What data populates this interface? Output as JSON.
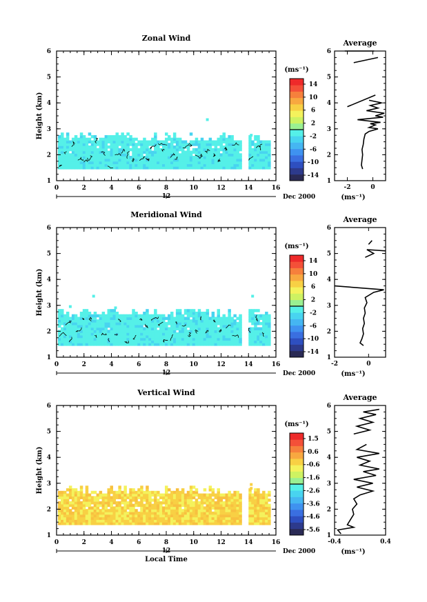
{
  "chart_data": [
    {
      "type": "heatmap",
      "title": "Zonal Wind",
      "ylabel": "Height (km)",
      "xlim": [
        0,
        16
      ],
      "ylim": [
        1,
        6
      ],
      "x_ticks": [
        "0",
        "2",
        "4",
        "6",
        "8",
        "10",
        "12",
        "14",
        "16"
      ],
      "y_ticks": [
        "1",
        "2",
        "3",
        "4",
        "5",
        "6"
      ],
      "date_day": "12",
      "date_label": "Dec 2000",
      "colorbar": {
        "unit": "(ms⁻¹)",
        "ticks": [
          "14",
          "10",
          "6",
          "2",
          "-2",
          "-6",
          "-10",
          "-14"
        ],
        "min": -16,
        "max": 16,
        "colors": [
          "#2a2a55",
          "#2d3a8c",
          "#2e4fc0",
          "#3a6fe0",
          "#3f92f0",
          "#45b6f2",
          "#48d4f0",
          "#55f0e8",
          "#9af092",
          "#cef262",
          "#f4f25c",
          "#f8d044",
          "#f8a840",
          "#f6803c",
          "#f45038",
          "#ee2a2a"
        ]
      },
      "field": {
        "band": [
          1.45,
          2.45
        ],
        "t_ranges": [
          [
            0.1,
            13.4
          ],
          [
            14.0,
            15.4
          ]
        ],
        "values_note": "",
        "outliers": [
          [
            5.1,
            2.75
          ],
          [
            10.9,
            3.3
          ],
          [
            14.1,
            2.7
          ]
        ]
      },
      "average": {
        "title": "Average",
        "xlabel": "(ms⁻¹)",
        "xlim": [
          -3,
          1
        ],
        "x_ticks": [
          "-2",
          "0"
        ],
        "y_ticks": [
          "1",
          "2",
          "3",
          "4",
          "5",
          "6"
        ],
        "profile": [
          [
            -0.8,
            1.45
          ],
          [
            -0.9,
            1.6
          ],
          [
            -0.85,
            1.8
          ],
          [
            -0.8,
            2.0
          ],
          [
            -0.85,
            2.2
          ],
          [
            -0.75,
            2.4
          ],
          [
            -0.7,
            2.6
          ],
          [
            -0.6,
            2.8
          ],
          [
            -0.3,
            2.9
          ],
          [
            0.4,
            3.0
          ],
          [
            -0.3,
            3.05
          ],
          [
            0.2,
            3.15
          ],
          [
            -0.2,
            3.2
          ],
          [
            0.6,
            3.25
          ],
          [
            -1.2,
            3.35
          ],
          [
            0.8,
            3.45
          ],
          [
            0.2,
            3.5
          ],
          [
            0.9,
            3.6
          ],
          [
            -0.5,
            3.7
          ],
          [
            0.4,
            3.8
          ],
          [
            -0.2,
            3.9
          ],
          [
            0.7,
            4.0
          ],
          [
            -0.3,
            4.1
          ]
        ],
        "segments": [
          [
            [
              -2.0,
              3.85
            ],
            [
              0.2,
              4.3
            ]
          ],
          [
            [
              -1.5,
              5.55
            ],
            [
              0.4,
              5.75
            ]
          ],
          [
            [
              -2.2,
              6.0
            ],
            [
              -0.1,
              6.2
            ]
          ],
          [
            [
              -0.1,
              6.55
            ],
            [
              0.1,
              6.65
            ],
            [
              0.0,
              6.75
            ]
          ]
        ]
      }
    },
    {
      "type": "heatmap",
      "title": "Meridional Wind",
      "ylabel": "Height (km)",
      "xlim": [
        0,
        16
      ],
      "ylim": [
        1,
        6
      ],
      "x_ticks": [
        "0",
        "2",
        "4",
        "6",
        "8",
        "10",
        "12",
        "14",
        "16"
      ],
      "y_ticks": [
        "1",
        "2",
        "3",
        "4",
        "5",
        "6"
      ],
      "date_day": "12",
      "date_label": "Dec 2000",
      "colorbar": {
        "unit": "(ms⁻¹)",
        "ticks": [
          "14",
          "10",
          "6",
          "2",
          "-2",
          "-6",
          "-10",
          "-14"
        ],
        "min": -16,
        "max": 16,
        "colors": [
          "#2a2a55",
          "#2d3a8c",
          "#2e4fc0",
          "#3a6fe0",
          "#3f92f0",
          "#45b6f2",
          "#48d4f0",
          "#55f0e8",
          "#9af092",
          "#cef262",
          "#f4f25c",
          "#f8d044",
          "#f8a840",
          "#f6803c",
          "#f45038",
          "#ee2a2a"
        ]
      },
      "field": {
        "band": [
          1.45,
          2.5
        ],
        "t_ranges": [
          [
            0.1,
            13.4
          ],
          [
            14.0,
            15.4
          ]
        ],
        "values_note": "",
        "outliers": [
          [
            0.9,
            2.9
          ],
          [
            2.6,
            3.3
          ],
          [
            14.2,
            3.3
          ],
          [
            4.2,
            2.85
          ]
        ]
      },
      "average": {
        "title": "Average",
        "xlabel": "(ms⁻¹)",
        "xlim": [
          -2,
          1
        ],
        "x_ticks": [
          "-2",
          "0"
        ],
        "y_ticks": [
          "1",
          "2",
          "3",
          "4",
          "5",
          "6"
        ],
        "profile": [
          [
            -0.3,
            1.45
          ],
          [
            -0.5,
            1.55
          ],
          [
            -0.4,
            1.7
          ],
          [
            -0.3,
            1.9
          ],
          [
            -0.35,
            2.1
          ],
          [
            -0.25,
            2.3
          ],
          [
            -0.3,
            2.5
          ],
          [
            -0.2,
            2.7
          ],
          [
            -0.25,
            2.9
          ],
          [
            -0.1,
            3.1
          ],
          [
            -0.2,
            3.3
          ],
          [
            0.3,
            3.5
          ],
          [
            0.9,
            3.6
          ],
          [
            -2.0,
            3.75
          ]
        ],
        "segments": [
          [
            [
              -0.2,
              4.85
            ],
            [
              0.3,
              5.0
            ],
            [
              -0.1,
              5.15
            ],
            [
              1.0,
              5.1
            ]
          ],
          [
            [
              0.0,
              5.35
            ],
            [
              0.2,
              5.5
            ]
          ]
        ]
      }
    },
    {
      "type": "heatmap",
      "title": "Vertical Wind",
      "ylabel": "Height (km)",
      "xlabel": "Local Time",
      "xlim": [
        0,
        16
      ],
      "ylim": [
        1,
        6
      ],
      "x_ticks": [
        "0",
        "2",
        "4",
        "6",
        "8",
        "10",
        "12",
        "14",
        "16"
      ],
      "y_ticks": [
        "1",
        "2",
        "3",
        "4",
        "5",
        "6"
      ],
      "date_day": "12",
      "date_label": "Dec 2000",
      "colorbar": {
        "unit": "(ms⁻¹)",
        "ticks": [
          "1.5",
          "0.6",
          "-0.6",
          "-1.6",
          "-2.6",
          "-3.6",
          "-4.6",
          "-5.6"
        ],
        "min": -6.1,
        "max": 2.0,
        "colors": [
          "#2a2a55",
          "#2d3a8c",
          "#2e4fc0",
          "#3a6fe0",
          "#3f92f0",
          "#45b6f2",
          "#48d4f0",
          "#55f0e8",
          "#9af092",
          "#cef262",
          "#f4f25c",
          "#f8d044",
          "#f8a840",
          "#f6803c",
          "#f45038",
          "#ee2a2a"
        ]
      },
      "field": {
        "band": [
          1.4,
          2.5
        ],
        "t_ranges": [
          [
            0.1,
            13.4
          ],
          [
            14.0,
            15.4
          ]
        ],
        "values_note": "",
        "outliers": [
          [
            14.1,
            2.9
          ],
          [
            14.1,
            2.75
          ]
        ]
      },
      "average": {
        "title": "Average",
        "xlabel": "(ms⁻¹)",
        "xlim": [
          -0.4,
          0.4
        ],
        "x_ticks": [
          "-0.4",
          "0.4"
        ],
        "y_ticks": [
          "1",
          "2",
          "3",
          "4",
          "5",
          "6"
        ],
        "profile": [
          [
            -0.3,
            1.05
          ],
          [
            -0.35,
            1.2
          ],
          [
            -0.1,
            1.3
          ],
          [
            -0.2,
            1.4
          ],
          [
            -0.15,
            1.6
          ],
          [
            -0.1,
            1.8
          ],
          [
            -0.12,
            2.0
          ],
          [
            -0.05,
            2.2
          ],
          [
            -0.1,
            2.4
          ],
          [
            0.0,
            2.55
          ],
          [
            0.2,
            2.7
          ],
          [
            -0.05,
            2.85
          ],
          [
            0.2,
            3.0
          ],
          [
            -0.1,
            3.15
          ],
          [
            0.25,
            3.3
          ],
          [
            0.05,
            3.45
          ],
          [
            0.3,
            3.55
          ],
          [
            0.0,
            3.7
          ],
          [
            0.15,
            3.85
          ],
          [
            -0.05,
            4.0
          ],
          [
            0.3,
            4.15
          ],
          [
            -0.05,
            4.3
          ],
          [
            0.1,
            4.5
          ]
        ],
        "segments": [
          [
            [
              -0.1,
              4.9
            ],
            [
              0.15,
              5.05
            ],
            [
              -0.05,
              5.2
            ],
            [
              0.2,
              5.35
            ],
            [
              0.0,
              5.5
            ],
            [
              0.25,
              5.65
            ],
            [
              0.05,
              5.75
            ],
            [
              0.3,
              5.85
            ]
          ]
        ]
      }
    }
  ]
}
